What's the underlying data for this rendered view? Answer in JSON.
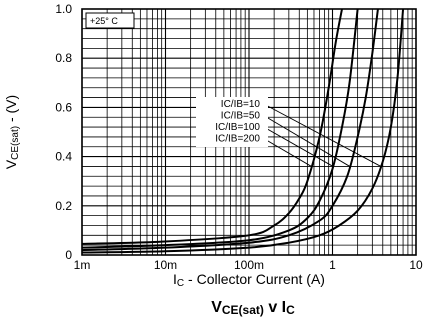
{
  "chart_data": {
    "type": "line",
    "title_main": "V",
    "title_sub": "CE(sat)",
    "title_rest": " v I",
    "title_end": "C",
    "xlabel_prefix": "I",
    "xlabel_sub": "C",
    "xlabel_rest": " - Collector Current (A)",
    "ylabel_main": "V",
    "ylabel_sub": "CE(sat)",
    "ylabel_rest": " - (V)",
    "x_scale": "log",
    "xlim": [
      0.001,
      10
    ],
    "ylim": [
      0,
      1.0
    ],
    "x_ticks": [
      {
        "value": 0.001,
        "label": "1m"
      },
      {
        "value": 0.01,
        "label": "10m"
      },
      {
        "value": 0.1,
        "label": "100m"
      },
      {
        "value": 1,
        "label": "1"
      },
      {
        "value": 10,
        "label": "10"
      }
    ],
    "y_ticks": [
      {
        "value": 0,
        "label": "0"
      },
      {
        "value": 0.2,
        "label": "0.2"
      },
      {
        "value": 0.4,
        "label": "0.4"
      },
      {
        "value": 0.6,
        "label": "0.6"
      },
      {
        "value": 0.8,
        "label": "0.8"
      },
      {
        "value": 1.0,
        "label": "1.0"
      }
    ],
    "grid": true,
    "annotation": "+25° C",
    "series": [
      {
        "name": "IC/IB=10",
        "x": [
          0.001,
          0.01,
          0.1,
          0.3,
          0.7,
          1.2,
          2.0,
          3.0,
          4.0,
          5.0,
          6.0,
          7.0
        ],
        "y": [
          0.01,
          0.015,
          0.03,
          0.05,
          0.08,
          0.12,
          0.18,
          0.27,
          0.38,
          0.52,
          0.72,
          1.0
        ]
      },
      {
        "name": "IC/IB=50",
        "x": [
          0.001,
          0.01,
          0.1,
          0.3,
          0.7,
          1.0,
          1.5,
          2.0,
          2.5,
          3.0,
          3.5
        ],
        "y": [
          0.02,
          0.03,
          0.05,
          0.08,
          0.14,
          0.2,
          0.32,
          0.48,
          0.64,
          0.82,
          1.0
        ]
      },
      {
        "name": "IC/IB=100",
        "x": [
          0.001,
          0.01,
          0.1,
          0.3,
          0.5,
          0.7,
          1.0,
          1.3,
          1.6,
          2.0
        ],
        "y": [
          0.03,
          0.04,
          0.06,
          0.1,
          0.15,
          0.22,
          0.35,
          0.52,
          0.7,
          1.0
        ]
      },
      {
        "name": "IC/IB=200",
        "x": [
          0.001,
          0.01,
          0.1,
          0.2,
          0.3,
          0.4,
          0.5,
          0.7,
          0.9,
          1.1,
          1.3
        ],
        "y": [
          0.045,
          0.055,
          0.08,
          0.12,
          0.17,
          0.23,
          0.3,
          0.48,
          0.68,
          0.87,
          1.0
        ]
      }
    ]
  }
}
